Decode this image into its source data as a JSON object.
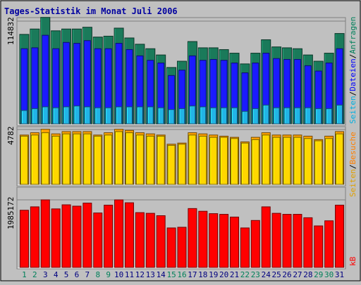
{
  "chart_data": [
    {
      "type": "bar",
      "title": "Tages-Statistik im Monat Juli 2006",
      "ytick": "114832",
      "legend": [
        "Seiten",
        "Dateien",
        "Anfragen"
      ],
      "categories": [
        "1",
        "2",
        "3",
        "4",
        "5",
        "6",
        "7",
        "8",
        "9",
        "10",
        "11",
        "12",
        "13",
        "14",
        "15",
        "16",
        "17",
        "18",
        "19",
        "20",
        "21",
        "22",
        "23",
        "24",
        "25",
        "26",
        "27",
        "28",
        "29",
        "30",
        "31"
      ],
      "series": [
        {
          "name": "Anfragen",
          "color": "#1a7a5a",
          "values": [
            100000,
            106000,
            119000,
            104000,
            106000,
            106000,
            108000,
            97000,
            98000,
            107000,
            96000,
            89000,
            84000,
            77000,
            63000,
            70000,
            92000,
            85000,
            85000,
            83000,
            79000,
            67000,
            79000,
            94000,
            86000,
            85000,
            84000,
            77000,
            70000,
            79000,
            101000
          ]
        },
        {
          "name": "Dateien",
          "color": "#1a1aff",
          "values": [
            84000,
            85000,
            99000,
            84000,
            91000,
            90000,
            93000,
            84000,
            84000,
            90000,
            83000,
            76000,
            71000,
            68000,
            54000,
            60000,
            76000,
            71000,
            72000,
            71000,
            68000,
            57000,
            68000,
            79000,
            73000,
            72000,
            72000,
            65000,
            59000,
            68000,
            84000
          ]
        },
        {
          "name": "Seiten",
          "color": "#22b4e6",
          "values": [
            15000,
            17000,
            19000,
            18000,
            19000,
            20000,
            19000,
            18000,
            18000,
            19000,
            19000,
            19000,
            19000,
            18000,
            16000,
            17000,
            20000,
            19000,
            18000,
            18000,
            18000,
            14000,
            17000,
            21000,
            18000,
            18000,
            18000,
            18000,
            17000,
            17000,
            21000
          ]
        }
      ]
    },
    {
      "type": "bar",
      "ytick": "4782",
      "legend": [
        "Seiten",
        "Besuche"
      ],
      "categories": [
        "1",
        "2",
        "3",
        "4",
        "5",
        "6",
        "7",
        "8",
        "9",
        "10",
        "11",
        "12",
        "13",
        "14",
        "15",
        "16",
        "17",
        "18",
        "19",
        "20",
        "21",
        "22",
        "23",
        "24",
        "25",
        "26",
        "27",
        "28",
        "29",
        "30",
        "31"
      ],
      "series": [
        {
          "name": "Besuche",
          "color": "#ffa000",
          "values": [
            4300,
            4500,
            4800,
            4400,
            4600,
            4600,
            4600,
            4300,
            4500,
            4800,
            4700,
            4500,
            4400,
            4300,
            3500,
            3600,
            4500,
            4400,
            4300,
            4200,
            4100,
            3700,
            4100,
            4500,
            4300,
            4300,
            4300,
            4200,
            3900,
            4200,
            4600
          ]
        },
        {
          "name": "Seiten",
          "color": "#ffd700",
          "values": [
            4200,
            4300,
            4500,
            4200,
            4400,
            4400,
            4400,
            4200,
            4300,
            4600,
            4500,
            4300,
            4200,
            4200,
            3400,
            3500,
            4300,
            4200,
            4100,
            4100,
            4000,
            3600,
            3900,
            4300,
            4100,
            4100,
            4100,
            4000,
            3800,
            4000,
            4400
          ]
        }
      ]
    },
    {
      "type": "bar",
      "ytick": "1985172",
      "legend": [
        "kB"
      ],
      "categories": [
        "1",
        "2",
        "3",
        "4",
        "5",
        "6",
        "7",
        "8",
        "9",
        "10",
        "11",
        "12",
        "13",
        "14",
        "15",
        "16",
        "17",
        "18",
        "19",
        "20",
        "21",
        "22",
        "23",
        "24",
        "25",
        "26",
        "27",
        "28",
        "29",
        "30",
        "31"
      ],
      "series": [
        {
          "name": "kB",
          "color": "#ff0000",
          "values": [
            1680000,
            1780000,
            1985000,
            1720000,
            1840000,
            1800000,
            1890000,
            1600000,
            1830000,
            1985000,
            1900000,
            1610000,
            1590000,
            1520000,
            1160000,
            1180000,
            1730000,
            1650000,
            1580000,
            1560000,
            1480000,
            1160000,
            1380000,
            1780000,
            1590000,
            1560000,
            1560000,
            1460000,
            1220000,
            1370000,
            1830000
          ]
        }
      ]
    }
  ],
  "x_day_colors": {
    "weekday": "#000080",
    "weekend": "#00805a"
  },
  "weekend_days": [
    "1",
    "2",
    "8",
    "9",
    "15",
    "16",
    "22",
    "23",
    "29",
    "30"
  ],
  "legend_colors": {
    "Anfragen": "#00805a",
    "Dateien": "#0000ff",
    "Seiten_top": "#00b0e0",
    "Besuche": "#ff8000",
    "Seiten_mid": "#e0a000",
    "kB": "#ff0000"
  },
  "separator": "/"
}
